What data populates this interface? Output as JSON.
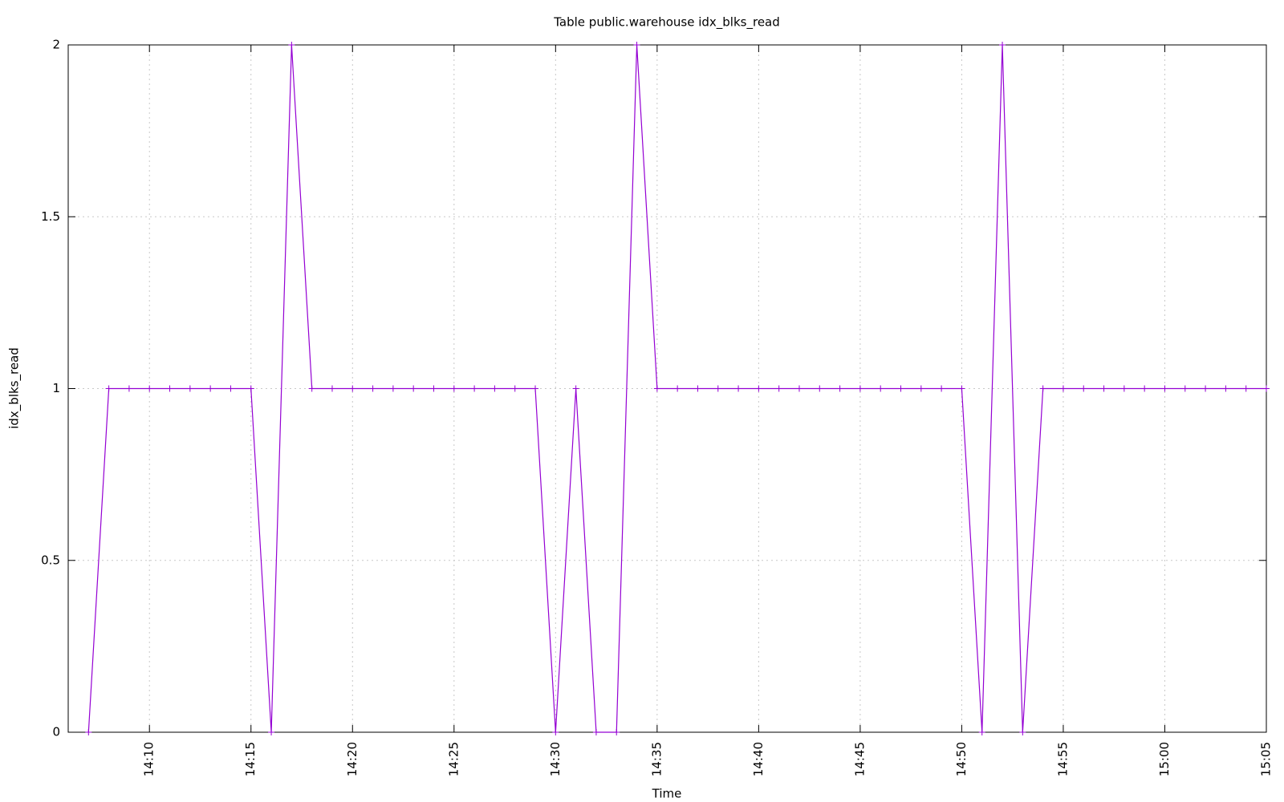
{
  "chart_data": {
    "type": "line",
    "title": "Table public.warehouse idx_blks_read",
    "x_label": "Time",
    "y_label": "idx_blks_read",
    "color": "#9400d3",
    "grid": true,
    "x": [
      "14:07",
      "14:08",
      "14:09",
      "14:10",
      "14:11",
      "14:12",
      "14:13",
      "14:14",
      "14:15",
      "14:16",
      "14:17",
      "14:18",
      "14:19",
      "14:20",
      "14:21",
      "14:22",
      "14:23",
      "14:24",
      "14:25",
      "14:26",
      "14:27",
      "14:28",
      "14:29",
      "14:30",
      "14:31",
      "14:32",
      "14:33",
      "14:34",
      "14:35",
      "14:36",
      "14:37",
      "14:38",
      "14:39",
      "14:40",
      "14:41",
      "14:42",
      "14:43",
      "14:44",
      "14:45",
      "14:46",
      "14:47",
      "14:48",
      "14:49",
      "14:50",
      "14:51",
      "14:52",
      "14:53",
      "14:54",
      "14:55",
      "14:56",
      "14:57",
      "14:58",
      "14:59",
      "15:00",
      "15:01",
      "15:02",
      "15:03",
      "15:04",
      "15:05"
    ],
    "values": [
      0,
      1,
      1,
      1,
      1,
      1,
      1,
      1,
      1,
      0,
      2,
      1,
      1,
      1,
      1,
      1,
      1,
      1,
      1,
      1,
      1,
      1,
      1,
      0,
      1,
      0,
      0,
      2,
      1,
      1,
      1,
      1,
      1,
      1,
      1,
      1,
      1,
      1,
      1,
      1,
      1,
      1,
      1,
      1,
      0,
      2,
      0,
      1,
      1,
      1,
      1,
      1,
      1,
      1,
      1,
      1,
      1,
      1,
      1
    ],
    "xlim": [
      "14:06",
      "15:05"
    ],
    "xticks": [
      "14:10",
      "14:15",
      "14:20",
      "14:25",
      "14:30",
      "14:35",
      "14:40",
      "14:45",
      "14:50",
      "14:55",
      "15:00",
      "15:05"
    ],
    "ylim": [
      0,
      2
    ],
    "yticks": [
      0,
      0.5,
      1,
      1.5,
      2
    ]
  }
}
